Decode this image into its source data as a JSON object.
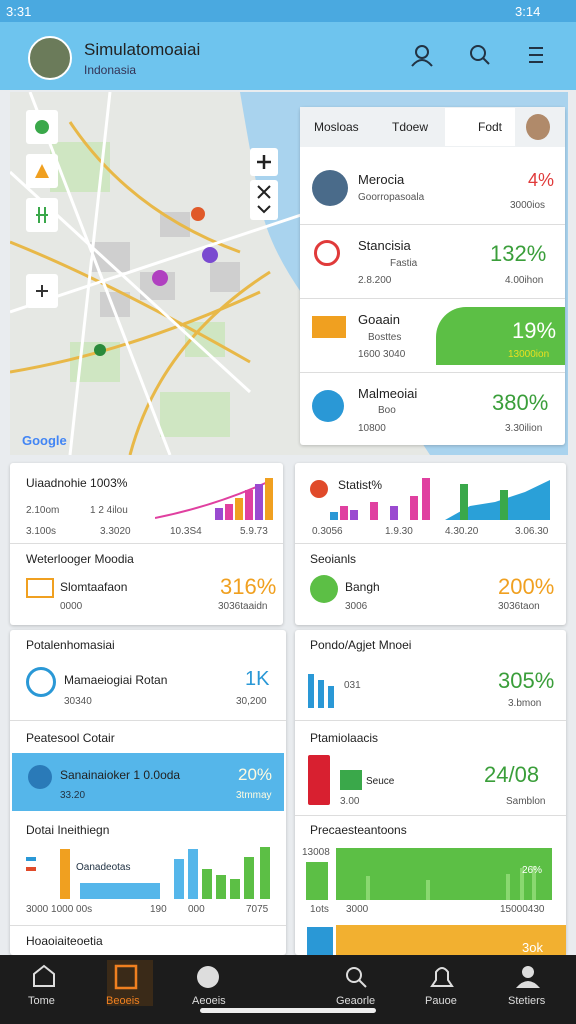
{
  "status_bar": {
    "time": "3:31",
    "right": "3:14"
  },
  "header": {
    "title": "Simulatomoaiai",
    "subtitle": "Indonasia"
  },
  "map": {
    "tabs": [
      "Mosloas",
      "Tdoew",
      "Fodt"
    ],
    "attribution": "Google",
    "items": [
      {
        "name": "Merocia",
        "sub": "Goorropasoala",
        "value": "4%",
        "caption": "3000ios"
      },
      {
        "name": "Stancisia",
        "sub": "Fastia",
        "meta": "2.8.200",
        "value": "132%",
        "caption": "4.00ihon"
      },
      {
        "name": "Goaain",
        "sub": "Bosttes",
        "meta": "1600 3040",
        "value": "19%",
        "caption": "13000ion"
      },
      {
        "name": "Malmeoiai",
        "sub": "Boo",
        "meta": "10800",
        "value": "380%",
        "caption": "3.30ilion"
      }
    ]
  },
  "cards": {
    "trend_left": {
      "title": "Uiaadnohie 1003%",
      "line1": "2.10om",
      "line2": "1 2 4ilou",
      "axis": [
        "3.100s",
        "3.3020",
        "10.3S4",
        "5.9.73"
      ]
    },
    "trend_right": {
      "title": "Statist%",
      "axis": [
        "0.3056",
        "1.9.30",
        "4.30.20",
        "3.06.30"
      ]
    },
    "stat_left": {
      "title": "Weterlooger Moodia",
      "name": "Slomtaafaon",
      "meta": "0000",
      "value": "316%",
      "caption": "3036taaidn"
    },
    "stat_right": {
      "title": "Seoianls",
      "name": "Bangh",
      "meta": "3006",
      "value": "200%",
      "caption": "3036taon"
    },
    "potal": {
      "title": "Potalenhomasiai",
      "name": "Mamaeiogiai Rotan",
      "meta": "30340",
      "value": "1K",
      "caption": "30,200"
    },
    "pondo": {
      "title": "Pondo/Agjet Mnoei",
      "name": "031",
      "value": "305%",
      "caption": "3.bmon"
    },
    "peatesool": {
      "title": "Peatesool Cotair",
      "name": "Sanainaioker 1 0.0oda",
      "meta": "33.20",
      "value": "20%",
      "caption": "3tmmay"
    },
    "ptamio": {
      "title": "Ptamiolaacis",
      "name": "Seuce",
      "meta": "3.00",
      "value": "24/08",
      "caption": "Samblon"
    },
    "dotai": {
      "title": "Dotai Ineithiegn",
      "legend": "Oanadeotas",
      "axis": [
        "3000 1000 00s",
        "190",
        "000",
        "7075"
      ]
    },
    "preca": {
      "title": "Precaesteantoons",
      "top": "13008",
      "value": "26%",
      "axis": [
        "1ots",
        "3000",
        "15000430"
      ]
    },
    "bottom_left": {
      "title": "Hoaoiaiteoetia"
    },
    "bottom_right": {
      "value": "3ok"
    }
  },
  "nav": [
    "Tome",
    "Beoeis",
    "Aeoeis",
    "Geaorle",
    "Pauoe",
    "Stetiers"
  ]
}
